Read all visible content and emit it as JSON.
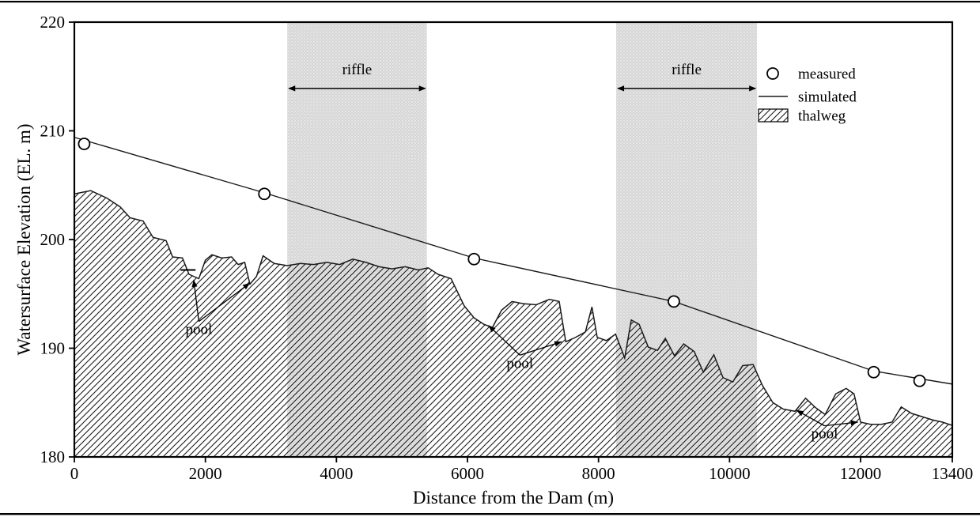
{
  "page": {
    "background": "#ffffff",
    "border_color": "#000000"
  },
  "chart_data": {
    "type": "line",
    "title": "",
    "xlabel": "Distance from the Dam (m)",
    "ylabel": "Watersurface Elevation (EL. m)",
    "xlim": [
      0,
      13400
    ],
    "ylim": [
      180,
      220
    ],
    "x_ticks": [
      0,
      2000,
      4000,
      6000,
      8000,
      10000,
      12000,
      13400
    ],
    "y_ticks": [
      180,
      190,
      200,
      210,
      220
    ],
    "grid": false,
    "legend": {
      "position": "top-right",
      "entries": [
        {
          "label": "measured",
          "swatch": "circle"
        },
        {
          "label": "simulated",
          "swatch": "line"
        },
        {
          "label": "thalweg",
          "swatch": "hatch"
        }
      ]
    },
    "series": [
      {
        "name": "measured",
        "type": "scatter",
        "points": [
          [
            150,
            208.8
          ],
          [
            2900,
            204.2
          ],
          [
            6100,
            198.2
          ],
          [
            9150,
            194.3
          ],
          [
            12200,
            187.8
          ],
          [
            12900,
            187.0
          ]
        ]
      },
      {
        "name": "simulated",
        "type": "line",
        "points": [
          [
            0,
            209.4
          ],
          [
            2900,
            204.3
          ],
          [
            6100,
            198.3
          ],
          [
            9150,
            194.3
          ],
          [
            12200,
            187.9
          ],
          [
            13400,
            186.7
          ]
        ]
      },
      {
        "name": "thalweg",
        "type": "area",
        "baseline": 180,
        "points": [
          [
            0,
            204.2
          ],
          [
            250,
            204.5
          ],
          [
            500,
            203.8
          ],
          [
            700,
            203.0
          ],
          [
            850,
            202.0
          ],
          [
            1050,
            201.7
          ],
          [
            1200,
            200.2
          ],
          [
            1400,
            199.9
          ],
          [
            1500,
            198.4
          ],
          [
            1650,
            198.3
          ],
          [
            1750,
            196.8
          ],
          [
            1900,
            196.4
          ],
          [
            2000,
            198.1
          ],
          [
            2100,
            198.6
          ],
          [
            2250,
            198.3
          ],
          [
            2400,
            198.4
          ],
          [
            2500,
            197.7
          ],
          [
            2600,
            197.9
          ],
          [
            2680,
            195.9
          ],
          [
            2780,
            196.6
          ],
          [
            2880,
            198.5
          ],
          [
            3050,
            197.8
          ],
          [
            3250,
            197.6
          ],
          [
            3450,
            197.8
          ],
          [
            3650,
            197.7
          ],
          [
            3850,
            197.9
          ],
          [
            4050,
            197.7
          ],
          [
            4250,
            198.2
          ],
          [
            4450,
            197.9
          ],
          [
            4650,
            197.5
          ],
          [
            4850,
            197.3
          ],
          [
            5050,
            197.5
          ],
          [
            5250,
            197.2
          ],
          [
            5400,
            197.4
          ],
          [
            5550,
            196.8
          ],
          [
            5750,
            196.4
          ],
          [
            5950,
            193.9
          ],
          [
            6100,
            192.8
          ],
          [
            6250,
            192.2
          ],
          [
            6380,
            191.9
          ],
          [
            6520,
            193.5
          ],
          [
            6680,
            194.3
          ],
          [
            6850,
            194.1
          ],
          [
            7050,
            194.0
          ],
          [
            7250,
            194.5
          ],
          [
            7400,
            194.3
          ],
          [
            7500,
            190.6
          ],
          [
            7650,
            191.0
          ],
          [
            7800,
            191.5
          ],
          [
            7900,
            193.8
          ],
          [
            7980,
            191.0
          ],
          [
            8120,
            190.7
          ],
          [
            8260,
            191.3
          ],
          [
            8400,
            189.1
          ],
          [
            8500,
            192.6
          ],
          [
            8620,
            192.2
          ],
          [
            8760,
            190.1
          ],
          [
            8900,
            189.8
          ],
          [
            9020,
            190.9
          ],
          [
            9160,
            189.3
          ],
          [
            9300,
            190.4
          ],
          [
            9460,
            189.7
          ],
          [
            9600,
            187.8
          ],
          [
            9760,
            189.4
          ],
          [
            9900,
            187.3
          ],
          [
            10050,
            186.9
          ],
          [
            10200,
            188.4
          ],
          [
            10360,
            188.5
          ],
          [
            10500,
            186.6
          ],
          [
            10660,
            185.0
          ],
          [
            10820,
            184.4
          ],
          [
            11000,
            184.2
          ],
          [
            11160,
            185.4
          ],
          [
            11320,
            184.5
          ],
          [
            11460,
            183.9
          ],
          [
            11620,
            185.8
          ],
          [
            11780,
            186.3
          ],
          [
            11900,
            185.8
          ],
          [
            12000,
            183.2
          ],
          [
            12150,
            183.0
          ],
          [
            12320,
            183.0
          ],
          [
            12480,
            183.2
          ],
          [
            12620,
            184.6
          ],
          [
            12780,
            184.0
          ],
          [
            12940,
            183.7
          ],
          [
            13100,
            183.4
          ],
          [
            13250,
            183.2
          ],
          [
            13400,
            182.9
          ]
        ]
      }
    ],
    "riffle_zones": [
      {
        "label": "riffle",
        "x_start": 3250,
        "x_end": 5380
      },
      {
        "label": "riffle",
        "x_start": 8270,
        "x_end": 10420
      }
    ],
    "riffle_arrow_elevation": 213.9,
    "riffle_label_elevation": 215.2,
    "pool_annotations": [
      {
        "label": "pool",
        "label_x": 1900,
        "label_y": 191.3,
        "targets": [
          [
            1822,
            196.3
          ],
          [
            2680,
            196.0
          ]
        ]
      },
      {
        "label": "pool",
        "label_x": 6800,
        "label_y": 188.2,
        "targets": [
          [
            6320,
            192.1
          ],
          [
            7440,
            190.6
          ]
        ]
      },
      {
        "label": "pool",
        "label_x": 11450,
        "label_y": 181.7,
        "targets": [
          [
            11020,
            184.3
          ],
          [
            11960,
            183.2
          ]
        ]
      }
    ],
    "pool_level_marks": [
      {
        "x1": 1620,
        "x2": 1850,
        "y": 197.2
      }
    ],
    "colors": {
      "stroke": "#1a1a1a",
      "riffle_band": "#d6d6d6",
      "marker_fill": "#ffffff"
    }
  }
}
